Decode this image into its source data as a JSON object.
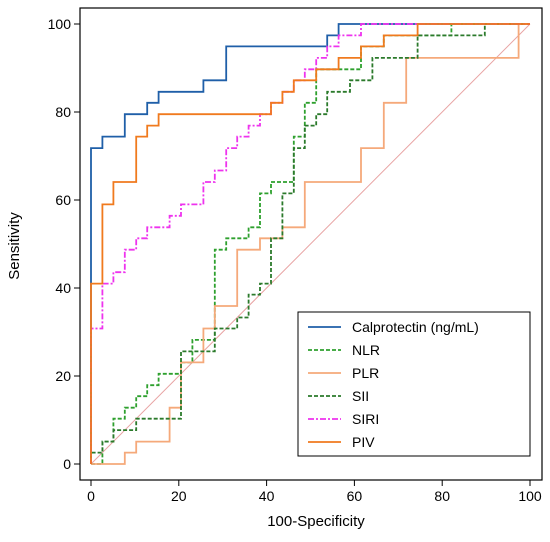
{
  "chart_data": {
    "type": "line",
    "xlabel": "100-Specificity",
    "ylabel": "Sensitivity",
    "xlim": [
      0,
      100
    ],
    "ylim": [
      0,
      100
    ],
    "x_ticks": [
      0,
      20,
      40,
      60,
      80,
      100
    ],
    "y_ticks": [
      0,
      20,
      40,
      60,
      80,
      100
    ],
    "x_tick_labels": [
      "0",
      "20",
      "40",
      "60",
      "80",
      "100"
    ],
    "y_tick_labels": [
      "0",
      "20",
      "40",
      "60",
      "80",
      "100"
    ],
    "grid": false,
    "legend_position": "bottom-right",
    "reference_line": {
      "x": [
        0,
        100
      ],
      "y": [
        0,
        100
      ],
      "color": "#e8a3a3"
    },
    "series": [
      {
        "name": "Calprotectin (ng/mL)",
        "color": "#1f5fa8",
        "dash": "solid",
        "x": [
          0,
          0,
          0,
          2.6,
          2.6,
          7.7,
          7.7,
          12.8,
          12.8,
          15.4,
          15.4,
          20.5,
          20.5,
          25.6,
          25.6,
          30.8,
          30.8,
          51.3,
          51.3,
          53.8,
          53.8,
          56.4,
          56.4,
          100
        ],
        "y": [
          0,
          71.8,
          71.8,
          71.8,
          74.4,
          74.4,
          79.5,
          79.5,
          82.1,
          82.1,
          84.6,
          84.6,
          84.6,
          84.6,
          87.2,
          87.2,
          94.9,
          94.9,
          94.9,
          94.9,
          97.4,
          97.4,
          100,
          100
        ]
      },
      {
        "name": "NLR",
        "color": "#2ea02e",
        "dash": "dashed",
        "x": [
          0,
          2.6,
          2.6,
          5.1,
          5.1,
          7.7,
          7.7,
          10.3,
          10.3,
          12.8,
          12.8,
          15.4,
          15.4,
          17.9,
          17.9,
          20.5,
          20.5,
          23.1,
          23.1,
          28.2,
          28.2,
          30.8,
          30.8,
          35.9,
          35.9,
          38.5,
          38.5,
          41,
          41,
          43.6,
          43.6,
          46.2,
          46.2,
          48.7,
          48.7,
          51.3,
          51.3,
          56.4,
          56.4,
          61.5,
          61.5,
          66.7,
          66.7,
          71.8,
          71.8,
          82.1,
          82.1,
          87.2,
          87.2,
          100
        ],
        "y": [
          0,
          0,
          5.1,
          5.1,
          10.3,
          10.3,
          12.8,
          12.8,
          15.4,
          15.4,
          17.9,
          17.9,
          20.5,
          20.5,
          20.5,
          20.5,
          23.1,
          23.1,
          28.2,
          28.2,
          48.7,
          48.7,
          51.3,
          51.3,
          53.8,
          53.8,
          61.5,
          61.5,
          64.1,
          64.1,
          64.1,
          64.1,
          74.4,
          74.4,
          82.1,
          82.1,
          89.7,
          89.7,
          89.7,
          89.7,
          94.9,
          94.9,
          97.4,
          97.4,
          97.4,
          97.4,
          100,
          100,
          100,
          100
        ]
      },
      {
        "name": "PLR",
        "color": "#f5a97a",
        "dash": "solid",
        "x": [
          0,
          7.7,
          7.7,
          10.3,
          10.3,
          17.9,
          17.9,
          20.5,
          20.5,
          25.6,
          25.6,
          28.2,
          28.2,
          33.3,
          33.3,
          35.9,
          35.9,
          38.5,
          38.5,
          43.6,
          43.6,
          48.7,
          48.7,
          53.8,
          53.8,
          61.5,
          61.5,
          66.7,
          66.7,
          71.8,
          71.8,
          74.4,
          74.4,
          97.4,
          97.4,
          100
        ],
        "y": [
          0,
          0,
          2.6,
          2.6,
          5.1,
          5.1,
          12.8,
          12.8,
          23.1,
          23.1,
          30.8,
          30.8,
          35.9,
          35.9,
          48.7,
          48.7,
          48.7,
          48.7,
          51.3,
          51.3,
          53.8,
          53.8,
          64.1,
          64.1,
          64.1,
          64.1,
          71.8,
          71.8,
          82.1,
          82.1,
          92.3,
          92.3,
          92.3,
          92.3,
          100,
          100
        ]
      },
      {
        "name": "SII",
        "color": "#2b7a2b",
        "dash": "dashed",
        "x": [
          0,
          0,
          0,
          2.6,
          2.6,
          5.1,
          5.1,
          10.3,
          10.3,
          17.9,
          17.9,
          20.5,
          20.5,
          28.2,
          28.2,
          33.3,
          33.3,
          35.9,
          35.9,
          38.5,
          38.5,
          41,
          41,
          43.6,
          43.6,
          46.2,
          46.2,
          48.7,
          48.7,
          51.3,
          51.3,
          53.8,
          53.8,
          59,
          59,
          64.1,
          64.1,
          74.4,
          74.4,
          89.7,
          89.7,
          100
        ],
        "y": [
          0,
          0,
          2.6,
          2.6,
          5.1,
          5.1,
          7.7,
          7.7,
          10.3,
          10.3,
          10.3,
          10.3,
          25.6,
          25.6,
          30.8,
          30.8,
          33.3,
          33.3,
          38.5,
          38.5,
          41,
          41,
          51.3,
          51.3,
          61.5,
          61.5,
          71.8,
          71.8,
          76.9,
          76.9,
          79.5,
          79.5,
          84.6,
          84.6,
          87.2,
          87.2,
          92.3,
          92.3,
          97.4,
          97.4,
          100,
          100
        ]
      },
      {
        "name": "SIRI",
        "color": "#ee33ee",
        "dash": "dashdot",
        "x": [
          0,
          0,
          2.6,
          2.6,
          5.1,
          5.1,
          7.7,
          7.7,
          10.3,
          10.3,
          12.8,
          12.8,
          15.4,
          15.4,
          17.9,
          17.9,
          20.5,
          20.5,
          23.1,
          23.1,
          25.6,
          25.6,
          28.2,
          28.2,
          30.8,
          30.8,
          33.3,
          33.3,
          35.9,
          35.9,
          38.5,
          38.5,
          41,
          41,
          43.6,
          43.6,
          46.2,
          46.2,
          48.7,
          48.7,
          51.3,
          51.3,
          53.8,
          53.8,
          56.4,
          56.4,
          59,
          59,
          61.5,
          61.5,
          64.1,
          64.1,
          74.4,
          74.4,
          100
        ],
        "y": [
          0,
          30.8,
          30.8,
          41,
          41,
          43.6,
          43.6,
          48.7,
          48.7,
          51.3,
          51.3,
          53.8,
          53.8,
          53.8,
          53.8,
          56.4,
          56.4,
          59,
          59,
          59,
          59,
          64.1,
          64.1,
          66.7,
          66.7,
          71.8,
          71.8,
          74.4,
          74.4,
          76.9,
          76.9,
          79.5,
          79.5,
          82.1,
          82.1,
          84.6,
          84.6,
          87.2,
          87.2,
          89.7,
          89.7,
          92.3,
          92.3,
          94.9,
          94.9,
          97.4,
          97.4,
          97.4,
          97.4,
          100,
          100,
          100,
          100,
          100,
          100
        ]
      },
      {
        "name": "PIV",
        "color": "#f07a1e",
        "dash": "solid",
        "x": [
          0,
          0,
          0,
          2.6,
          2.6,
          5.1,
          5.1,
          10.3,
          10.3,
          12.8,
          12.8,
          15.4,
          15.4,
          41,
          41,
          43.6,
          43.6,
          46.2,
          46.2,
          51.3,
          51.3,
          56.4,
          56.4,
          61.5,
          61.5,
          66.7,
          66.7,
          74.4,
          74.4,
          100
        ],
        "y": [
          0,
          0,
          41,
          41,
          59,
          59,
          64.1,
          64.1,
          74.4,
          74.4,
          76.9,
          76.9,
          79.5,
          79.5,
          82.1,
          82.1,
          84.6,
          84.6,
          87.2,
          87.2,
          89.7,
          89.7,
          92.3,
          92.3,
          94.9,
          94.9,
          97.4,
          97.4,
          100,
          100
        ]
      }
    ]
  }
}
